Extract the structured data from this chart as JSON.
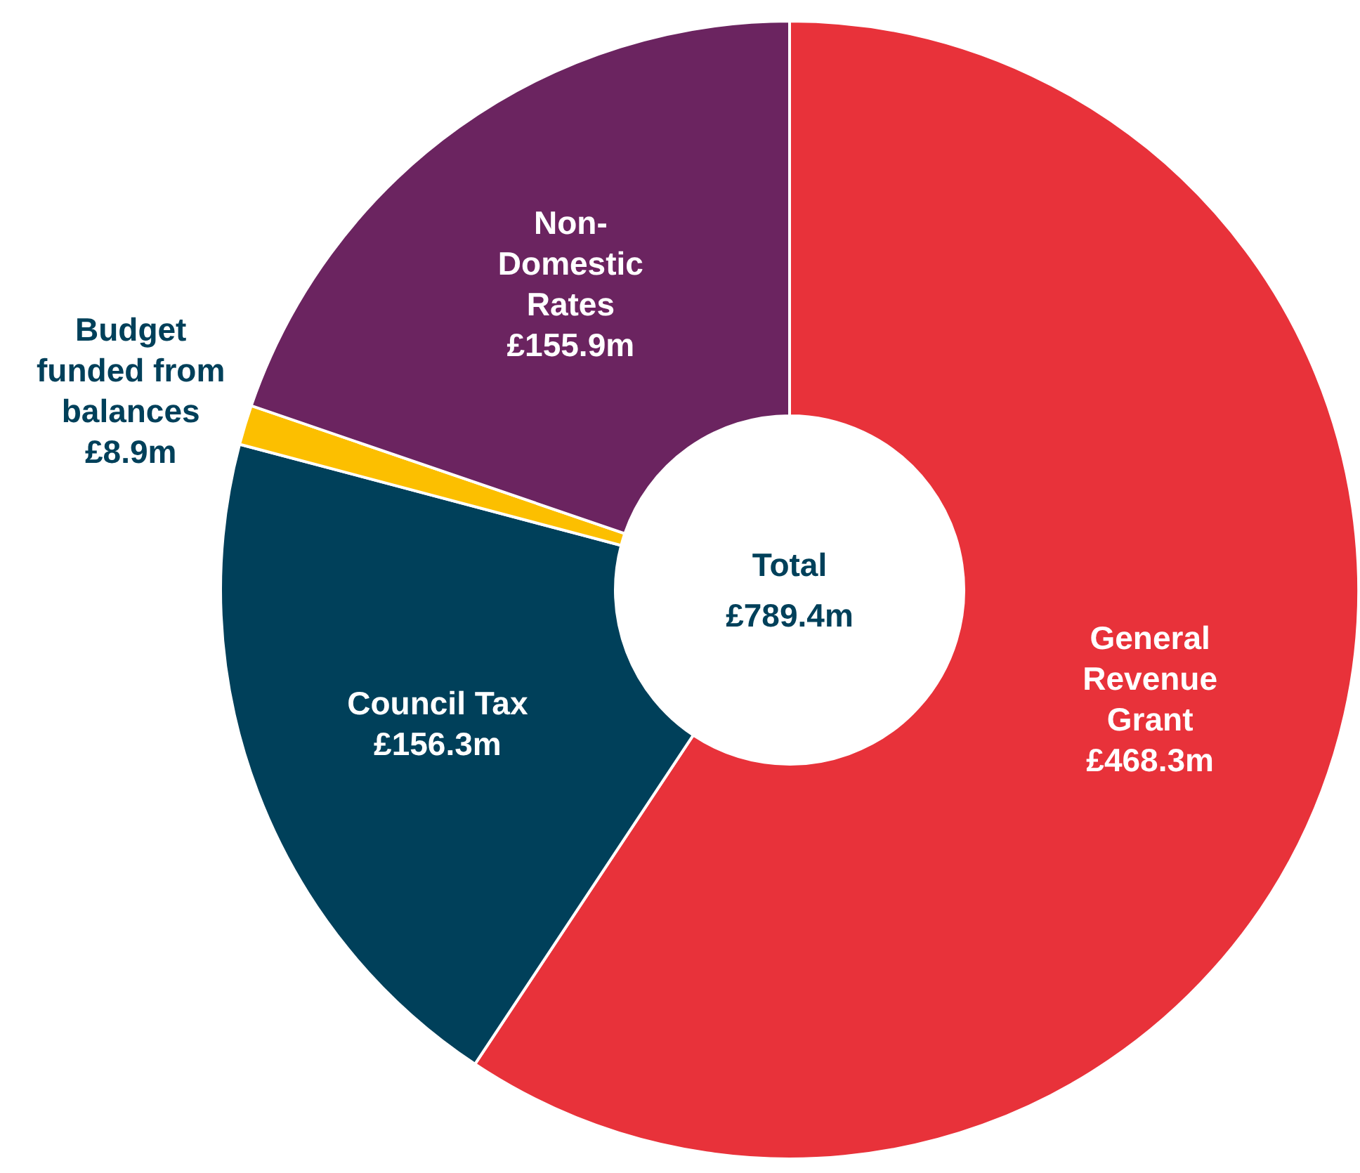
{
  "chart_data": {
    "type": "donut",
    "categories": [
      "General Revenue Grant",
      "Council Tax",
      "Budget funded from balances",
      "Non-Domestic Rates"
    ],
    "values": [
      468.3,
      156.3,
      8.9,
      155.9
    ],
    "colors": [
      "#e8323a",
      "#00405a",
      "#fcbf00",
      "#6b2460"
    ],
    "value_labels": [
      "£468.3m",
      "£156.3m",
      "£8.9m",
      "£155.9m"
    ],
    "annotations": [
      "Total",
      "£789.4m"
    ],
    "legend": false
  }
}
